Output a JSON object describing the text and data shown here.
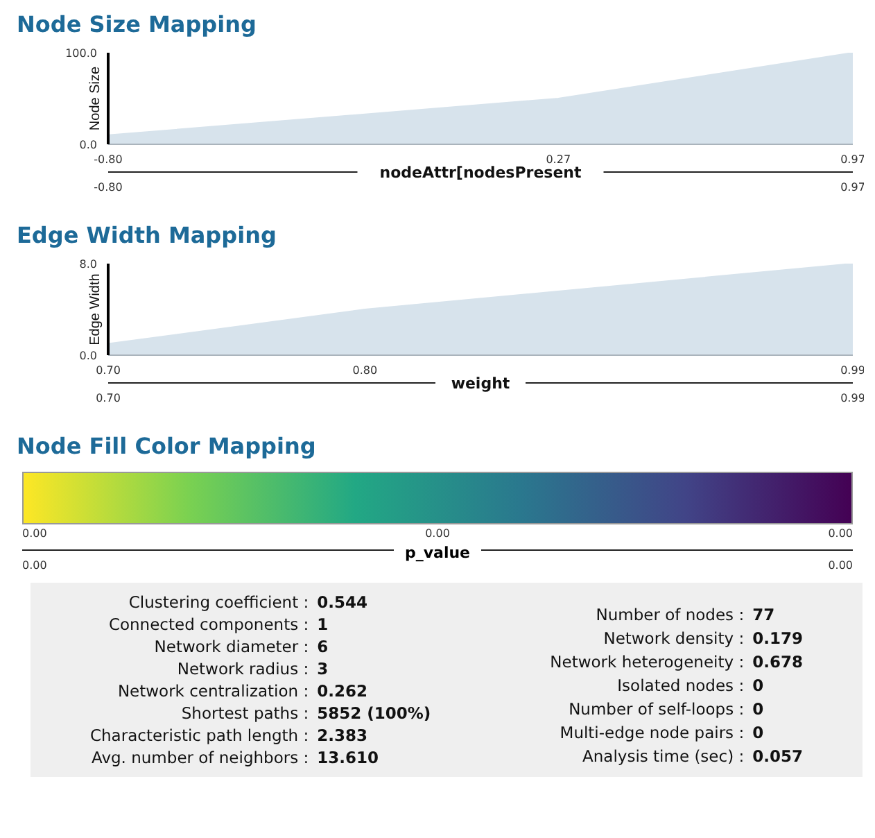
{
  "chart_data": [
    {
      "type": "area",
      "title": "Node Size Mapping",
      "ylabel": "Node Size",
      "xlabel": "nodeAttr[nodesPresent",
      "x": [
        -0.8,
        0.27,
        0.97
      ],
      "values": [
        10,
        50,
        100
      ],
      "color": "#d7e3ec",
      "xlim": [
        -0.8,
        0.97
      ],
      "xticks": [
        {
          "value": -0.8,
          "label": "-0.80"
        },
        0.27,
        0.97
      ],
      "ylim": [
        0,
        100
      ],
      "yticks": [
        {
          "value": 0,
          "label": "0.0"
        },
        {
          "value": 100,
          "label": "100.0"
        }
      ],
      "x2lim": [
        -0.8,
        0.97
      ],
      "x2ticks": [
        {
          "value": -0.8,
          "label": "-0.80"
        },
        0.97
      ]
    },
    {
      "type": "area",
      "title": "Edge Width Mapping",
      "ylabel": "Edge Width",
      "xlabel": "weight",
      "x": [
        0.7,
        0.8,
        0.99
      ],
      "values": [
        1,
        4,
        8
      ],
      "color": "#d7e3ec",
      "xlim": [
        0.7,
        0.99
      ],
      "xticks": [
        {
          "value": 0.7,
          "label": "0.70"
        },
        {
          "value": 0.8,
          "label": "0.80"
        },
        0.99
      ],
      "ylim": [
        0,
        8
      ],
      "yticks": [
        {
          "value": 0,
          "label": "0.0"
        },
        {
          "value": 8,
          "label": "8.0"
        }
      ],
      "x2lim": [
        0.7,
        0.99
      ],
      "x2ticks": [
        {
          "value": 0.7,
          "label": "0.70"
        },
        0.99
      ]
    },
    {
      "type": "other",
      "title": "Node Fill Color Mapping",
      "xlabel": "p_value",
      "colors": [
        "#fde725",
        "#7ad151",
        "#22a884",
        "#2a788e",
        "#414487",
        "#440154"
      ],
      "annotations": [
        "0.00",
        "0.00",
        "0.00",
        "0.00",
        "0.00"
      ]
    },
    {
      "type": "other",
      "annotations": [
        "Clustering coefficient : 0.544",
        "Connected components : 1",
        "Network diameter : 6",
        "Network radius : 3",
        "Network centralization : 0.262",
        "Shortest paths : 5852 (100%)",
        "Characteristic path length : 2.383",
        "Avg. number of neighbors : 13.610",
        "Number of nodes : 77",
        "Network density : 0.179",
        "Network heterogeneity : 0.678",
        "Isolated nodes : 0",
        "Number of self-loops : 0",
        "Multi-edge node pairs : 0",
        "Analysis time (sec) : 0.057"
      ]
    }
  ]
}
